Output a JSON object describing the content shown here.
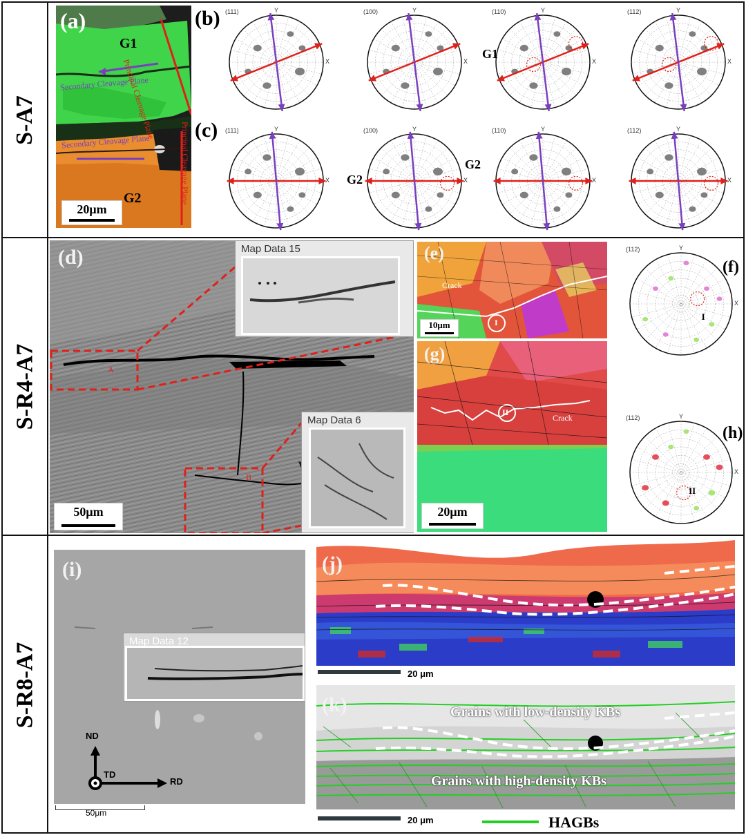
{
  "rows": [
    {
      "label": "S-A7"
    },
    {
      "label": "S-R4-A7"
    },
    {
      "label": "S-R8-A7"
    }
  ],
  "panel_a": {
    "letter": "(a)",
    "g1": "G1",
    "g2": "G2",
    "principal_1": "Principal Cleavage Plane",
    "secondary_1": "Secondary Cleavage Plane",
    "principal_2": "Principal Cleavage Plane",
    "secondary_2": "Secondary Cleavage Plane",
    "scale": "20μm"
  },
  "panel_b": {
    "letter": "(b)",
    "figures": [
      {
        "index": "(111)"
      },
      {
        "index": "(100)"
      },
      {
        "index": "(110)",
        "grain": "G1"
      },
      {
        "index": "(112)"
      }
    ]
  },
  "panel_c": {
    "letter": "(c)",
    "figures": [
      {
        "index": "(111)"
      },
      {
        "index": "(100)",
        "grain_left": "G2",
        "grain_right": "G2"
      },
      {
        "index": "(110)"
      },
      {
        "index": "(112)"
      }
    ]
  },
  "pf_axes": {
    "y": "Y",
    "x": "X"
  },
  "panel_d": {
    "letter": "(d)",
    "scale": "50μm",
    "inset_1": "Map Data 15",
    "inset_2": "Map Data 6",
    "box_a": "A",
    "box_b": "B"
  },
  "panel_e": {
    "letter": "(e)",
    "crack": "Crack",
    "marker": "I",
    "scale": "10μm"
  },
  "panel_f": {
    "letter": "(f)",
    "index": "(112)",
    "marker": "I"
  },
  "panel_g": {
    "letter": "(g)",
    "crack": "Crack",
    "marker": "II",
    "scale": "20μm"
  },
  "panel_h": {
    "letter": "(h)",
    "index": "(112)",
    "marker": "II"
  },
  "panel_i": {
    "letter": "(i)",
    "inset": "Map Data 12",
    "axis_nd": "ND",
    "axis_td": "TD",
    "axis_rd": "RD",
    "scale": "50μm"
  },
  "panel_j": {
    "letter": "(j)",
    "scale": "20 μm"
  },
  "panel_k": {
    "letter": "(k)",
    "upper": "Grains with low-density KBs",
    "lower": "Grains with high-density KBs",
    "scale": "20 μm",
    "legend": "HAGBs"
  },
  "colors": {
    "principal_arrow": "#e0201a",
    "secondary_arrow": "#7a3fbf",
    "hagb": "#22d022"
  }
}
